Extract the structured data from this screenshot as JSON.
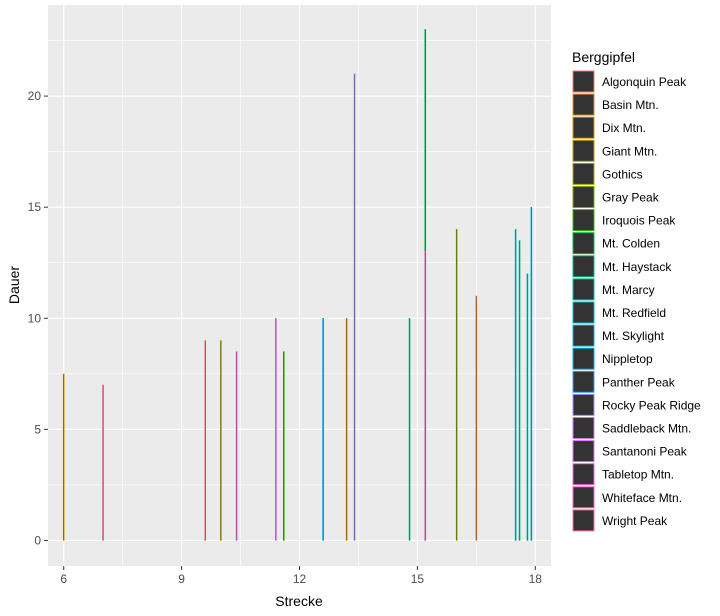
{
  "chart_data": {
    "type": "bar",
    "xlabel": "Strecke",
    "ylabel": "Dauer",
    "xlim": [
      5.6,
      18.4
    ],
    "ylim": [
      -1.15,
      24.1
    ],
    "x_ticks": [
      6,
      9,
      12,
      15,
      18
    ],
    "y_ticks": [
      0,
      5,
      10,
      15,
      20
    ],
    "grid": true,
    "legend": {
      "title": "Berggipfel",
      "placement": "right",
      "entries": [
        {
          "name": "Algonquin Peak",
          "color": "#F8766D"
        },
        {
          "name": "Basin Mtn.",
          "color": "#EA8331"
        },
        {
          "name": "Dix Mtn.",
          "color": "#D89000"
        },
        {
          "name": "Giant Mtn.",
          "color": "#C09B00"
        },
        {
          "name": "Gothics",
          "color": "#A3A500"
        },
        {
          "name": "Gray Peak",
          "color": "#7CAE00"
        },
        {
          "name": "Iroquois Peak",
          "color": "#39B600"
        },
        {
          "name": "Mt. Colden",
          "color": "#00BB4E"
        },
        {
          "name": "Mt. Haystack",
          "color": "#00BF7D"
        },
        {
          "name": "Mt. Marcy",
          "color": "#00C1A3"
        },
        {
          "name": "Mt. Redfield",
          "color": "#00BFC4"
        },
        {
          "name": "Mt. Skylight",
          "color": "#00BAE0"
        },
        {
          "name": "Nippletop",
          "color": "#00B0F6"
        },
        {
          "name": "Panther Peak",
          "color": "#35A2FF"
        },
        {
          "name": "Rocky Peak Ridge",
          "color": "#9590FF"
        },
        {
          "name": "Saddleback Mtn.",
          "color": "#C77CFF"
        },
        {
          "name": "Santanoni Peak",
          "color": "#E76BF3"
        },
        {
          "name": "Tabletop Mtn.",
          "color": "#FA62DB"
        },
        {
          "name": "Whiteface Mtn.",
          "color": "#FF62BC"
        },
        {
          "name": "Wright Peak",
          "color": "#FF6C90"
        }
      ]
    },
    "bars": [
      {
        "x": 6.0,
        "y": 7.5,
        "color": "#D89000"
      },
      {
        "x": 7.0,
        "y": 7.0,
        "color": "#FF6C90"
      },
      {
        "x": 9.6,
        "y": 9.0,
        "color": "#F8766D"
      },
      {
        "x": 10.0,
        "y": 9.0,
        "color": "#A3A500"
      },
      {
        "x": 10.4,
        "y": 8.5,
        "color": "#FA62DB"
      },
      {
        "x": 11.4,
        "y": 10.0,
        "color": "#E76BF3"
      },
      {
        "x": 11.6,
        "y": 8.5,
        "color": "#39B600"
      },
      {
        "x": 12.6,
        "y": 10.0,
        "color": "#00B0F6"
      },
      {
        "x": 13.2,
        "y": 10.0,
        "color": "#D89000"
      },
      {
        "x": 13.4,
        "y": 21.0,
        "color": "#9590FF"
      },
      {
        "x": 14.8,
        "y": 10.0,
        "color": "#00BF7D"
      },
      {
        "x": 15.2,
        "y": 23.0,
        "color": "#00BB4E"
      },
      {
        "x": 15.2,
        "y": 13.0,
        "color": "#FF62BC"
      },
      {
        "x": 16.0,
        "y": 14.0,
        "color": "#7CAE00"
      },
      {
        "x": 16.5,
        "y": 11.0,
        "color": "#EA8331"
      },
      {
        "x": 17.5,
        "y": 14.0,
        "color": "#00BFC4"
      },
      {
        "x": 17.6,
        "y": 13.5,
        "color": "#00C1A3"
      },
      {
        "x": 17.8,
        "y": 12.0,
        "color": "#00C1A3"
      },
      {
        "x": 17.9,
        "y": 15.0,
        "color": "#00BAE0"
      }
    ]
  }
}
